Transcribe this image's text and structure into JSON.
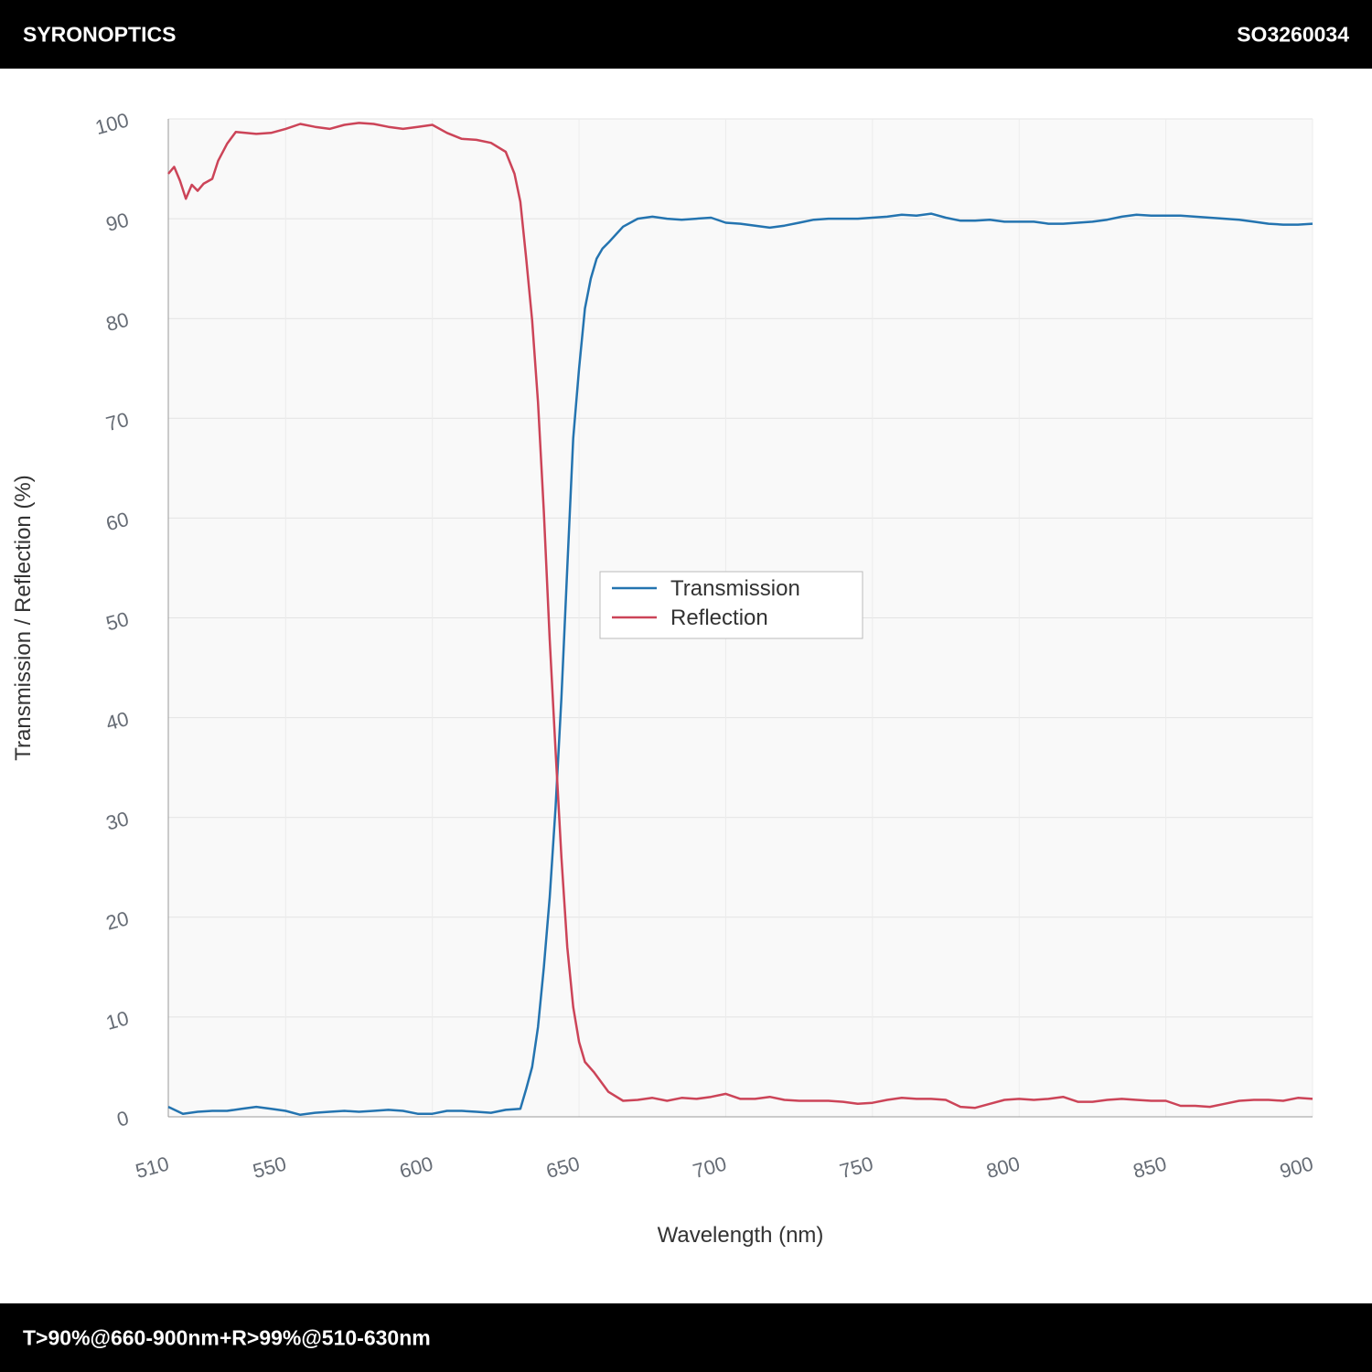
{
  "header": {
    "brand": "SYRONOPTICS",
    "code": "SO3260034"
  },
  "footer": {
    "spec": "T>90%@660-900nm+R>99%@510-630nm"
  },
  "chart_data": {
    "type": "line",
    "x_label": "Wavelength (nm)",
    "y_label": "Transmission / Reflection (%)",
    "xlim": [
      510,
      900
    ],
    "xticks": [
      510,
      550,
      600,
      650,
      700,
      750,
      800,
      850,
      900
    ],
    "ylim": [
      0,
      100
    ],
    "yticks": [
      0,
      10,
      20,
      30,
      40,
      50,
      60,
      70,
      80,
      90,
      100
    ],
    "grid": true,
    "legend": "center",
    "series": [
      {
        "name": "Transmission",
        "color": "#2474b0",
        "x": [
          510,
          515,
          520,
          525,
          530,
          535,
          540,
          545,
          550,
          555,
          560,
          565,
          570,
          575,
          580,
          585,
          590,
          595,
          600,
          605,
          610,
          615,
          620,
          625,
          630,
          632,
          634,
          636,
          638,
          640,
          642,
          644,
          646,
          648,
          650,
          652,
          654,
          656,
          658,
          660,
          665,
          670,
          675,
          680,
          685,
          690,
          695,
          700,
          705,
          710,
          715,
          720,
          725,
          730,
          735,
          740,
          745,
          750,
          755,
          760,
          765,
          770,
          775,
          780,
          785,
          790,
          795,
          800,
          805,
          810,
          815,
          820,
          825,
          830,
          835,
          840,
          845,
          850,
          855,
          860,
          865,
          870,
          875,
          880,
          885,
          890,
          895,
          900
        ],
        "values": [
          1.0,
          0.3,
          0.5,
          0.6,
          0.6,
          0.8,
          1.0,
          0.8,
          0.6,
          0.2,
          0.4,
          0.5,
          0.6,
          0.5,
          0.6,
          0.7,
          0.6,
          0.3,
          0.3,
          0.6,
          0.6,
          0.5,
          0.4,
          0.7,
          0.8,
          2.8,
          5,
          9,
          15,
          22,
          31,
          42,
          55,
          68,
          75,
          81,
          84,
          86,
          87,
          87.6,
          89.2,
          90,
          90.2,
          90.0,
          89.9,
          90.0,
          90.1,
          89.6,
          89.5,
          89.3,
          89.1,
          89.3,
          89.6,
          89.9,
          90.0,
          90.0,
          90.0,
          90.1,
          90.2,
          90.4,
          90.3,
          90.5,
          90.1,
          89.8,
          89.8,
          89.9,
          89.7,
          89.7,
          89.7,
          89.5,
          89.5,
          89.6,
          89.7,
          89.9,
          90.2,
          90.4,
          90.3,
          90.3,
          90.3,
          90.2,
          90.1,
          90.0,
          89.9,
          89.7,
          89.5,
          89.4,
          89.4,
          89.5
        ]
      },
      {
        "name": "Reflection",
        "color": "#cc4458",
        "x": [
          510,
          512,
          514,
          516,
          518,
          520,
          522,
          525,
          527,
          530,
          533,
          540,
          545,
          550,
          555,
          560,
          565,
          570,
          575,
          580,
          585,
          590,
          595,
          600,
          605,
          610,
          615,
          620,
          625,
          628,
          630,
          632,
          634,
          636,
          638,
          640,
          642,
          644,
          646,
          648,
          650,
          652,
          655,
          660,
          665,
          670,
          675,
          680,
          685,
          690,
          695,
          700,
          705,
          710,
          715,
          720,
          725,
          730,
          735,
          740,
          745,
          750,
          755,
          760,
          765,
          770,
          775,
          780,
          785,
          790,
          795,
          800,
          805,
          810,
          815,
          820,
          825,
          830,
          835,
          840,
          845,
          850,
          855,
          860,
          865,
          870,
          875,
          880,
          885,
          890,
          895,
          900
        ],
        "values": [
          94.5,
          95.2,
          93.8,
          92.0,
          93.4,
          92.8,
          93.5,
          94.0,
          95.8,
          97.5,
          98.7,
          98.5,
          98.6,
          99.0,
          99.5,
          99.2,
          99.0,
          99.4,
          99.6,
          99.5,
          99.2,
          99.0,
          99.2,
          99.4,
          98.6,
          98.0,
          97.9,
          97.6,
          96.7,
          94.5,
          91.7,
          86,
          79.8,
          71.6,
          60.6,
          47.8,
          36.7,
          26,
          17,
          11,
          7.5,
          5.5,
          4.5,
          2.5,
          1.6,
          1.7,
          1.9,
          1.6,
          1.9,
          1.8,
          2.0,
          2.3,
          1.8,
          1.8,
          2.0,
          1.7,
          1.6,
          1.6,
          1.6,
          1.5,
          1.3,
          1.4,
          1.7,
          1.9,
          1.8,
          1.8,
          1.7,
          1.0,
          0.9,
          1.3,
          1.7,
          1.8,
          1.7,
          1.8,
          2.0,
          1.5,
          1.5,
          1.7,
          1.8,
          1.7,
          1.6,
          1.6,
          1.1,
          1.1,
          1.0,
          1.3,
          1.6,
          1.7,
          1.7,
          1.6,
          1.9,
          1.8
        ]
      }
    ]
  }
}
